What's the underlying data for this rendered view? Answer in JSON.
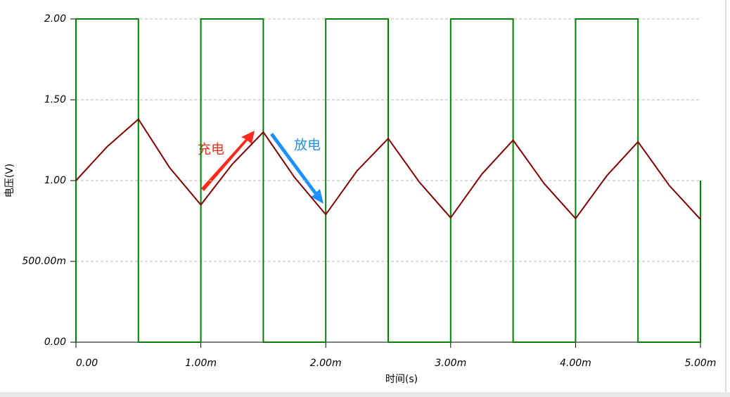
{
  "chart_data": {
    "type": "line",
    "x_label": "时间(s)",
    "y_label": "电压(V)",
    "annotations": [
      "充电",
      "放电"
    ],
    "xlim": [
      0,
      0.005
    ],
    "ylim": [
      0,
      2
    ],
    "xticks": [
      {
        "value": 0,
        "label": "0.00"
      },
      {
        "value": 0.001,
        "label": "1.00m"
      },
      {
        "value": 0.002,
        "label": "2.00m"
      },
      {
        "value": 0.003,
        "label": "3.00m"
      },
      {
        "value": 0.004,
        "label": "4.00m"
      },
      {
        "value": 0.005,
        "label": "5.00m"
      }
    ],
    "yticks": [
      {
        "value": 0,
        "label": "0.00"
      },
      {
        "value": 0.5,
        "label": "500.00m"
      },
      {
        "value": 1,
        "label": "1.00"
      },
      {
        "value": 1.5,
        "label": "1.50"
      },
      {
        "value": 2,
        "label": "2.00"
      }
    ],
    "grid": true,
    "series": [
      {
        "color": "#008000",
        "x": [
          0,
          0,
          0.0005,
          0.0005,
          0.001,
          0.001,
          0.0015,
          0.0015,
          0.002,
          0.002,
          0.0025,
          0.0025,
          0.003,
          0.003,
          0.0035,
          0.0035,
          0.004,
          0.004,
          0.0045,
          0.0045,
          0.005,
          0.005
        ],
        "values": [
          0,
          2,
          2,
          0,
          0,
          2,
          2,
          0,
          0,
          2,
          2,
          0,
          0,
          2,
          2,
          0,
          0,
          2,
          2,
          0,
          0,
          1
        ]
      },
      {
        "color": "#800000",
        "x": [
          0,
          0.00025,
          0.0005,
          0.00075,
          0.001,
          0.00125,
          0.0015,
          0.00175,
          0.002,
          0.00225,
          0.0025,
          0.00275,
          0.003,
          0.00325,
          0.0035,
          0.00375,
          0.004,
          0.00425,
          0.0045,
          0.00475,
          0.005
        ],
        "values": [
          1.0,
          1.21,
          1.38,
          1.08,
          0.85,
          1.1,
          1.3,
          1.02,
          0.79,
          1.06,
          1.26,
          0.99,
          0.77,
          1.04,
          1.25,
          0.98,
          0.765,
          1.03,
          1.24,
          0.97,
          0.76
        ]
      }
    ]
  }
}
